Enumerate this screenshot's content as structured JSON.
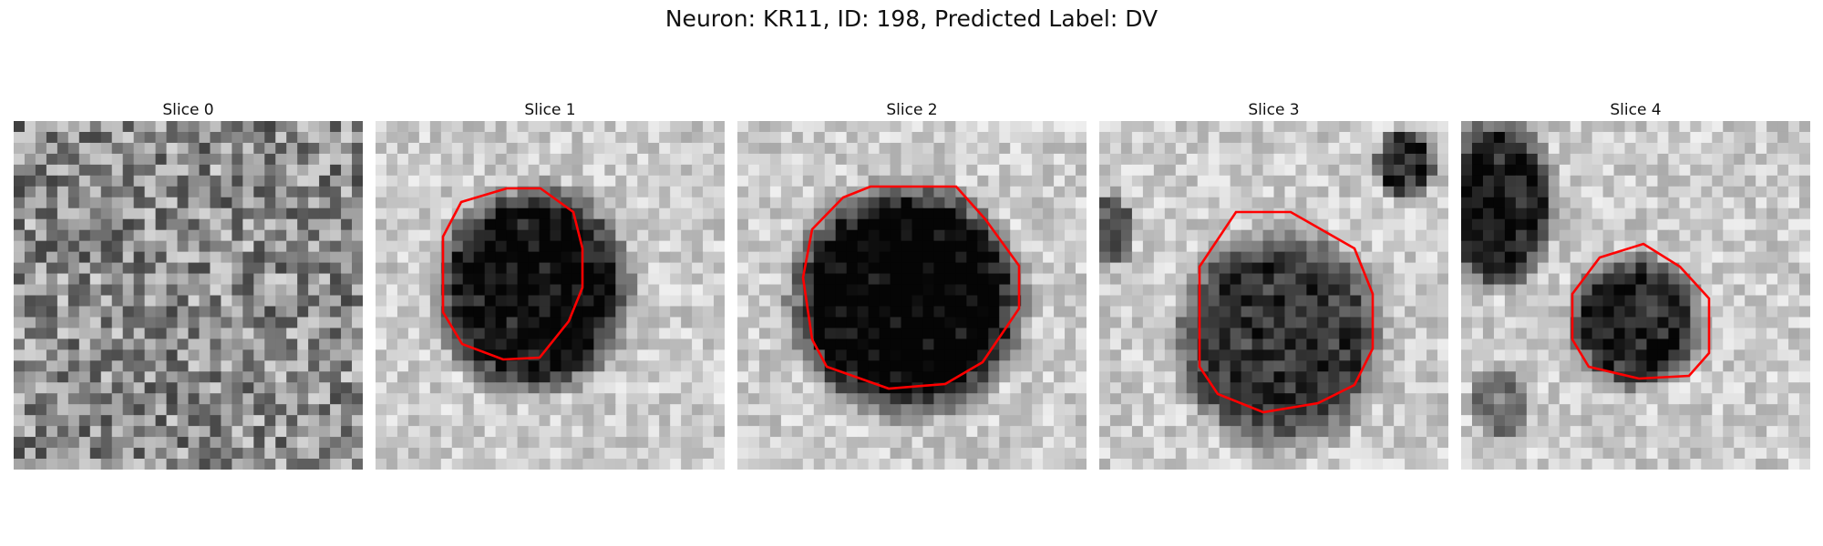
{
  "figure": {
    "title": "Neuron: KR11, ID: 198, Predicted Label: DV"
  },
  "colors": {
    "contour": "#ff0000"
  },
  "panels": [
    {
      "title": "Slice 0",
      "seed": 11,
      "contour": false
    },
    {
      "title": "Slice 1",
      "seed": 23,
      "contour": true
    },
    {
      "title": "Slice 2",
      "seed": 37,
      "contour": true
    },
    {
      "title": "Slice 3",
      "seed": 53,
      "contour": true
    },
    {
      "title": "Slice 4",
      "seed": 71,
      "contour": true
    }
  ]
}
